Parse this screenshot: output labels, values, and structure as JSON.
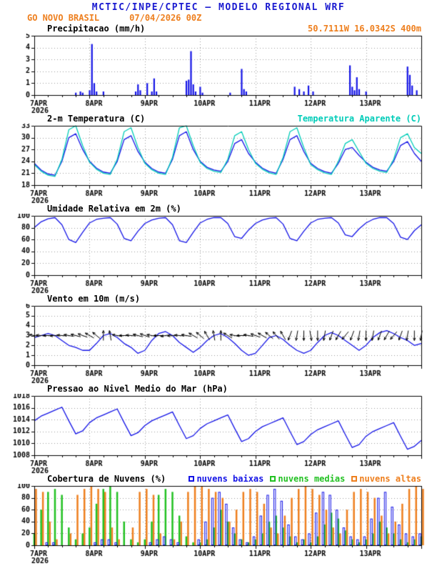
{
  "header": {
    "title": "MCTIC/INPE/CPTEC — MODELO REGIONAL WRF",
    "station": "GO NOVO BRASIL",
    "run": "07/04/2026 00Z",
    "coords": "50.7111W 16.0342S 400m"
  },
  "colors": {
    "header_blue": "#1a1ad0",
    "orange": "#ee7f1e",
    "blue": "#1414e6",
    "cyan": "#00ccb8",
    "green": "#22c122",
    "black": "#000000"
  },
  "x_axis": {
    "start_hour": 0,
    "end_hour": 168,
    "step_hours": 3,
    "day_labels": [
      "7APR",
      "8APR",
      "9APR",
      "10APR",
      "11APR",
      "12APR",
      "13APR"
    ],
    "year_label": "2026"
  },
  "chart_data": [
    {
      "type": "bar",
      "title": "Precipitacao (mm/h)",
      "ylabel": "mm/h",
      "ylim": [
        0,
        5
      ],
      "yticks": [
        0,
        1,
        2,
        3,
        4,
        5
      ],
      "color": "blue",
      "bars": [
        [
          18,
          0.2
        ],
        [
          20,
          0.3
        ],
        [
          21,
          0.2
        ],
        [
          24,
          0.4
        ],
        [
          25,
          4.3
        ],
        [
          26,
          1.0
        ],
        [
          27,
          0.3
        ],
        [
          30,
          0.3
        ],
        [
          44,
          0.3
        ],
        [
          45,
          0.9
        ],
        [
          46,
          0.4
        ],
        [
          49,
          1.0
        ],
        [
          51,
          0.3
        ],
        [
          52,
          1.4
        ],
        [
          53,
          0.3
        ],
        [
          66,
          1.2
        ],
        [
          67,
          1.3
        ],
        [
          68,
          3.7
        ],
        [
          69,
          0.9
        ],
        [
          70,
          0.3
        ],
        [
          72,
          0.7
        ],
        [
          73,
          0.2
        ],
        [
          85,
          0.2
        ],
        [
          90,
          2.2
        ],
        [
          91,
          0.5
        ],
        [
          92,
          0.3
        ],
        [
          113,
          0.7
        ],
        [
          115,
          0.5
        ],
        [
          117,
          0.3
        ],
        [
          119,
          0.8
        ],
        [
          121,
          0.3
        ],
        [
          137,
          2.5
        ],
        [
          138,
          0.7
        ],
        [
          139,
          0.4
        ],
        [
          140,
          1.5
        ],
        [
          141,
          0.5
        ],
        [
          144,
          0.3
        ],
        [
          162,
          2.4
        ],
        [
          163,
          1.7
        ],
        [
          164,
          0.8
        ],
        [
          166,
          0.4
        ]
      ]
    },
    {
      "type": "line",
      "title": "2-m Temperatura (C)",
      "ylabel": "C",
      "ylim": [
        18,
        33
      ],
      "yticks": [
        18,
        21,
        24,
        27,
        30,
        33
      ],
      "series": [
        {
          "name": "2-m Temperatura (C)",
          "color": "blue",
          "values": [
            23.5,
            21.8,
            20.8,
            20.5,
            24,
            30,
            31,
            27,
            24,
            22.3,
            21.3,
            21,
            24,
            29.5,
            30.5,
            26.5,
            23.8,
            22.2,
            21.3,
            21,
            24.5,
            30.5,
            31.5,
            27,
            24,
            22.5,
            21.8,
            21.5,
            24,
            28.5,
            29.5,
            26,
            23.8,
            22.3,
            21.4,
            21,
            24.5,
            29.5,
            30.5,
            26.5,
            23.5,
            22.2,
            21.4,
            21,
            23.5,
            27,
            27.5,
            25.5,
            23.8,
            22.5,
            21.8,
            21.5,
            24,
            28,
            29,
            26,
            24
          ]
        },
        {
          "name": "Temperatura Aparente (C)",
          "color": "cyan",
          "values": [
            23.2,
            21.5,
            20.5,
            20.2,
            24.5,
            32,
            33,
            28,
            23.8,
            22,
            21,
            20.7,
            24.5,
            31.5,
            32.5,
            27.5,
            23.5,
            21.9,
            21,
            20.7,
            25,
            32.5,
            33,
            28,
            23.8,
            22.2,
            21.5,
            21.2,
            24.5,
            30.5,
            31.5,
            27,
            23.5,
            22,
            21.1,
            20.7,
            25,
            31.5,
            32.5,
            27.5,
            23.2,
            21.9,
            21.1,
            20.7,
            24,
            28.5,
            29.5,
            26.5,
            23.5,
            22.2,
            21.5,
            21.2,
            24.5,
            30,
            31,
            27.5,
            26
          ]
        }
      ]
    },
    {
      "type": "line",
      "title": "Umidade Relativa em 2m (%)",
      "ylabel": "%",
      "ylim": [
        0,
        100
      ],
      "yticks": [
        0,
        20,
        40,
        60,
        80,
        100
      ],
      "series": [
        {
          "name": "Umidade Relativa em 2m (%)",
          "color": "blue",
          "values": [
            80,
            90,
            95,
            97,
            85,
            60,
            55,
            72,
            88,
            94,
            96,
            97,
            86,
            62,
            58,
            74,
            87,
            93,
            96,
            97,
            85,
            58,
            55,
            72,
            88,
            94,
            97,
            97,
            87,
            65,
            62,
            76,
            87,
            93,
            96,
            97,
            86,
            62,
            58,
            74,
            88,
            94,
            96,
            97,
            88,
            68,
            65,
            78,
            88,
            94,
            97,
            97,
            87,
            64,
            60,
            75,
            85
          ]
        }
      ]
    },
    {
      "type": "line",
      "title": "Vento em 10m (m/s)",
      "ylabel": "m/s",
      "ylim": [
        0,
        6
      ],
      "yticks": [
        0,
        1,
        2,
        3,
        4,
        5,
        6
      ],
      "series": [
        {
          "name": "Vento em 10m (m/s)",
          "color": "blue",
          "values": [
            2.8,
            3,
            3.2,
            3,
            2.5,
            2,
            1.8,
            1.5,
            1.5,
            2.2,
            3,
            3.2,
            2.8,
            2.2,
            1.8,
            1.2,
            1.5,
            2.5,
            3.2,
            3.4,
            3,
            2.3,
            1.8,
            1.3,
            1.8,
            2.5,
            3,
            3.2,
            2.8,
            2.2,
            1.5,
            1,
            1.2,
            2,
            2.8,
            3,
            2.6,
            2,
            1.5,
            1.2,
            1.5,
            2.3,
            3,
            3.3,
            3,
            2.5,
            2,
            1.5,
            2,
            2.8,
            3.3,
            3.5,
            3.2,
            2.8,
            2.5,
            2,
            2.2
          ]
        }
      ],
      "arrows": {
        "name": "wind-direction-arrows",
        "y": 3,
        "directions_deg": [
          170,
          175,
          180,
          185,
          175,
          170,
          165,
          160,
          150,
          140,
          90,
          100,
          170,
          180,
          175,
          165,
          160,
          170,
          180,
          190,
          185,
          175,
          170,
          150,
          140,
          120,
          100,
          90,
          150,
          170,
          180,
          170,
          160,
          150,
          140,
          130,
          120,
          250,
          260,
          270,
          280,
          270,
          260,
          250,
          240,
          230,
          250,
          260,
          270,
          260,
          250,
          240,
          230,
          250,
          260,
          270,
          260
        ]
      }
    },
    {
      "type": "line",
      "title": "Pressao ao Nivel Medio do Mar (hPa)",
      "ylabel": "hPa",
      "ylim": [
        1008,
        1018
      ],
      "yticks": [
        1008,
        1010,
        1012,
        1014,
        1016,
        1018
      ],
      "series": [
        {
          "name": "Pressao ao Nivel Medio do Mar (hPa)",
          "color": "blue",
          "values": [
            1013.8,
            1014.6,
            1015.1,
            1015.6,
            1016.1,
            1013.8,
            1011.6,
            1012.1,
            1013.5,
            1014.3,
            1014.8,
            1015.3,
            1015.8,
            1013.5,
            1011.3,
            1011.8,
            1013,
            1013.8,
            1014.3,
            1014.8,
            1015.3,
            1013,
            1010.8,
            1011.3,
            1012.5,
            1013.3,
            1013.8,
            1014.3,
            1014.8,
            1012.5,
            1010.3,
            1010.8,
            1012,
            1012.8,
            1013.3,
            1013.8,
            1014.3,
            1012,
            1009.8,
            1010.3,
            1011.5,
            1012.3,
            1012.8,
            1013.3,
            1013.8,
            1011.5,
            1009.3,
            1009.8,
            1011.2,
            1012,
            1012.5,
            1013,
            1013.5,
            1011.2,
            1009,
            1009.5,
            1010.5
          ]
        }
      ]
    },
    {
      "type": "bar-group",
      "title": "Cobertura de Nuvens (%)",
      "ylabel": "%",
      "ylim": [
        0,
        100
      ],
      "yticks": [
        0,
        20,
        40,
        60,
        80,
        100
      ],
      "series": [
        {
          "name": "nuvens baixas",
          "color": "blue",
          "style": "hollow",
          "values": [
            0,
            0,
            5,
            5,
            0,
            0,
            0,
            0,
            0,
            5,
            10,
            10,
            5,
            0,
            0,
            0,
            0,
            5,
            10,
            15,
            10,
            5,
            0,
            0,
            10,
            40,
            80,
            90,
            70,
            30,
            10,
            5,
            15,
            50,
            85,
            95,
            75,
            35,
            15,
            10,
            20,
            55,
            90,
            85,
            60,
            30,
            15,
            10,
            15,
            45,
            80,
            90,
            65,
            35,
            20,
            15,
            20
          ]
        },
        {
          "name": "nuvens medias",
          "color": "green",
          "style": "solid",
          "values": [
            20,
            60,
            90,
            95,
            85,
            30,
            10,
            20,
            30,
            70,
            95,
            100,
            90,
            40,
            10,
            5,
            10,
            40,
            85,
            95,
            90,
            50,
            15,
            5,
            5,
            10,
            30,
            60,
            40,
            20,
            10,
            5,
            10,
            20,
            40,
            50,
            30,
            15,
            5,
            10,
            5,
            15,
            35,
            55,
            45,
            25,
            10,
            5,
            10,
            20,
            40,
            30,
            20,
            10,
            5,
            10,
            15
          ]
        },
        {
          "name": "nuvens altas",
          "color": "orange",
          "style": "solid",
          "values": [
            95,
            90,
            40,
            10,
            0,
            20,
            85,
            95,
            100,
            95,
            90,
            30,
            10,
            0,
            30,
            90,
            95,
            85,
            20,
            0,
            10,
            40,
            90,
            100,
            100,
            95,
            90,
            80,
            40,
            60,
            90,
            95,
            90,
            70,
            30,
            20,
            50,
            80,
            95,
            100,
            95,
            85,
            60,
            30,
            20,
            60,
            90,
            95,
            90,
            80,
            50,
            20,
            40,
            70,
            95,
            100,
            95
          ]
        }
      ]
    }
  ]
}
